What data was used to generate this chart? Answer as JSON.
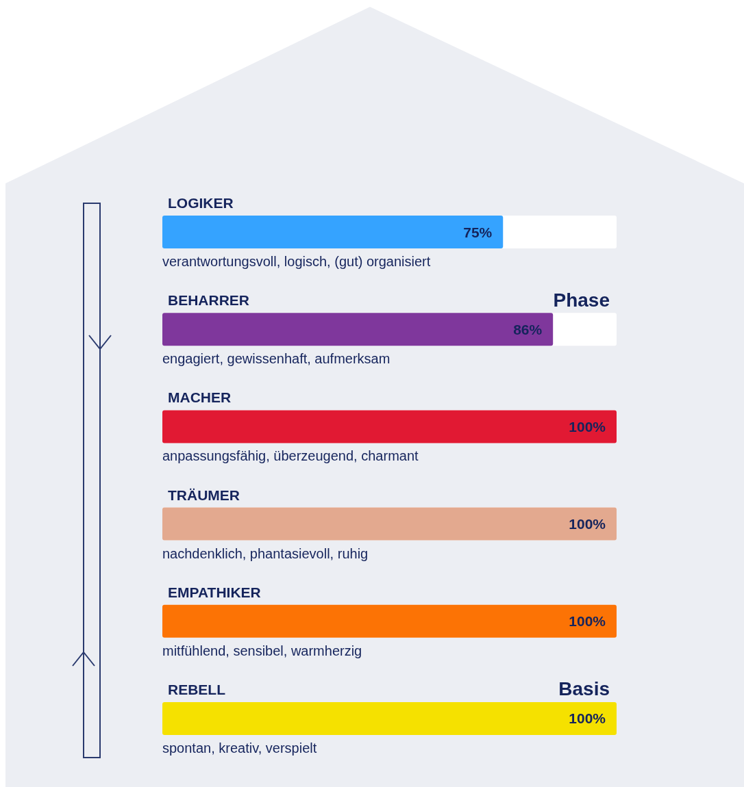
{
  "chart_data": {
    "type": "bar",
    "orientation": "horizontal",
    "categories": [
      "LOGIKER",
      "BEHARRER",
      "MACHER",
      "TRÄUMER",
      "EMPATHIKER",
      "REBELL"
    ],
    "values": [
      75,
      86,
      100,
      100,
      100,
      100
    ],
    "colors": [
      "#35a3ff",
      "#7f379c",
      "#e11933",
      "#e3a98f",
      "#fc7305",
      "#f5e100"
    ],
    "value_labels": [
      "75%",
      "86%",
      "100%",
      "100%",
      "100%",
      "100%"
    ],
    "xlim": [
      0,
      100
    ],
    "tick_labels": "y",
    "annotations": [
      "verantwortungsvoll, logisch, (gut) organisiert",
      "engagiert, gewissenhaft, aufmerksam",
      "anpassungsfähig, überzeugend, charmant",
      "nachdenklich, phantasievoll, ruhig",
      "mitfühlend, sensibel, warmherzig",
      "spontan, kreativ, verspielt",
      "Phase",
      "Basis"
    ]
  }
}
